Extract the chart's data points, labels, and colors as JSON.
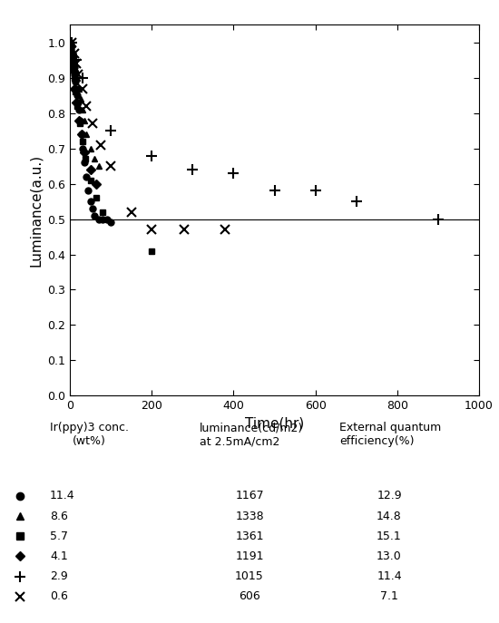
{
  "xlabel": "Time(hr)",
  "ylabel": "Luminance(a.u.)",
  "xlim": [
    0,
    1000
  ],
  "ylim": [
    0,
    1.05
  ],
  "yticks": [
    0,
    0.1,
    0.2,
    0.3,
    0.4,
    0.5,
    0.6,
    0.7,
    0.8,
    0.9,
    1.0
  ],
  "xticks": [
    0,
    200,
    400,
    600,
    800,
    1000
  ],
  "halflife_line": 0.5,
  "series_11p4": {
    "marker": "o",
    "color": "black",
    "markersize": 5,
    "x": [
      1,
      2,
      3,
      4,
      5,
      6,
      7,
      8,
      10,
      12,
      14,
      16,
      18,
      20,
      22,
      25,
      28,
      32,
      36,
      40,
      45,
      50,
      55,
      60,
      70,
      80,
      90,
      100
    ],
    "y": [
      1.0,
      0.99,
      0.98,
      0.97,
      0.96,
      0.96,
      0.95,
      0.94,
      0.93,
      0.91,
      0.89,
      0.87,
      0.85,
      0.83,
      0.81,
      0.78,
      0.74,
      0.7,
      0.66,
      0.62,
      0.58,
      0.55,
      0.53,
      0.51,
      0.5,
      0.5,
      0.5,
      0.49
    ]
  },
  "series_8p6": {
    "marker": "^",
    "color": "black",
    "markersize": 5,
    "x": [
      1,
      2,
      3,
      4,
      5,
      6,
      8,
      10,
      12,
      15,
      18,
      22,
      26,
      30,
      35,
      40,
      50,
      60,
      70
    ],
    "y": [
      1.0,
      0.99,
      0.99,
      0.98,
      0.98,
      0.97,
      0.96,
      0.95,
      0.94,
      0.92,
      0.9,
      0.87,
      0.84,
      0.81,
      0.78,
      0.74,
      0.7,
      0.67,
      0.65
    ]
  },
  "series_5p7": {
    "marker": "s",
    "color": "black",
    "markersize": 5,
    "x": [
      1,
      2,
      3,
      5,
      7,
      10,
      14,
      18,
      24,
      30,
      38,
      50,
      65,
      80,
      200
    ],
    "y": [
      1.0,
      0.99,
      0.98,
      0.96,
      0.93,
      0.9,
      0.86,
      0.82,
      0.77,
      0.72,
      0.67,
      0.61,
      0.56,
      0.52,
      0.41
    ]
  },
  "series_4p1": {
    "marker": "D",
    "color": "black",
    "markersize": 5,
    "x": [
      1,
      2,
      4,
      6,
      8,
      12,
      16,
      22,
      28,
      36,
      50,
      65
    ],
    "y": [
      1.0,
      0.99,
      0.97,
      0.95,
      0.92,
      0.87,
      0.83,
      0.78,
      0.74,
      0.69,
      0.64,
      0.6
    ]
  },
  "series_2p9": {
    "marker": "+",
    "color": "black",
    "markersize": 9,
    "markeredgewidth": 1.5,
    "x": [
      5,
      15,
      30,
      100,
      200,
      300,
      400,
      500,
      600,
      700,
      900
    ],
    "y": [
      1.0,
      0.95,
      0.9,
      0.75,
      0.68,
      0.64,
      0.63,
      0.58,
      0.58,
      0.55,
      0.5
    ]
  },
  "series_0p6": {
    "marker": "x",
    "color": "black",
    "markersize": 7,
    "markeredgewidth": 1.5,
    "x": [
      5,
      10,
      15,
      20,
      30,
      40,
      55,
      75,
      100,
      150,
      200,
      280,
      380
    ],
    "y": [
      1.0,
      0.97,
      0.94,
      0.91,
      0.87,
      0.82,
      0.77,
      0.71,
      0.65,
      0.52,
      0.47,
      0.47,
      0.47
    ]
  },
  "table_headers": [
    "Ir(ppy)3 conc.\n(wt%)",
    "luminance(cd/m2)\nat 2.5mA/cm2",
    "External quantum\nefficiency(%)"
  ],
  "table_rows": [
    [
      "11.4",
      "1167",
      "12.9"
    ],
    [
      "8.6",
      "1338",
      "14.8"
    ],
    [
      "5.7",
      "1361",
      "15.1"
    ],
    [
      "4.1",
      "1191",
      "13.0"
    ],
    [
      "2.9",
      "1015",
      "11.4"
    ],
    [
      "0.6",
      "606",
      "7.1"
    ]
  ],
  "table_markers": [
    "o",
    "^",
    "s",
    "D",
    "+",
    "x"
  ],
  "background_color": "#ffffff",
  "text_color": "#000000"
}
